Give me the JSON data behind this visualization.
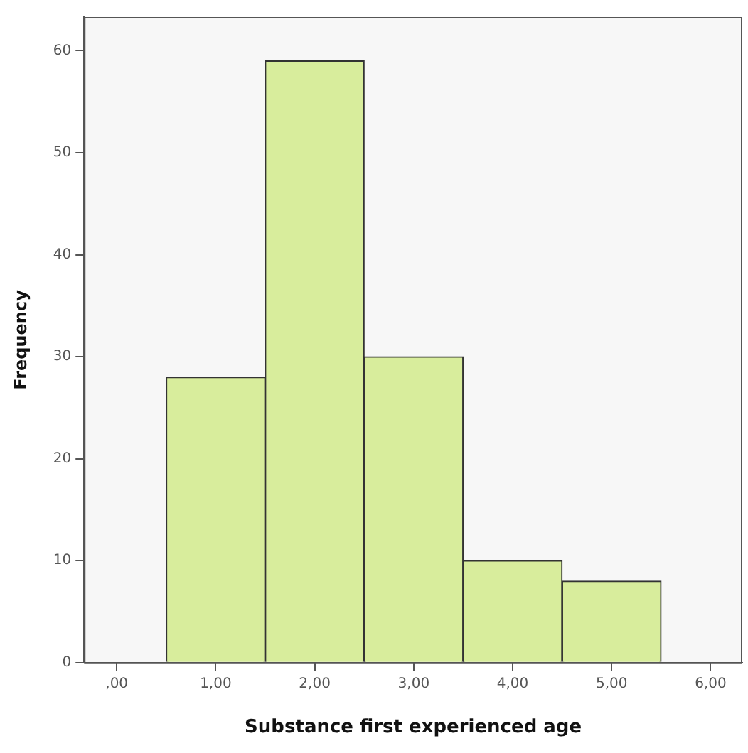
{
  "chart_data": {
    "type": "histogram",
    "xlabel": "Substance first experienced age",
    "ylabel": "Frequency",
    "bins": [
      0.5,
      1.5,
      2.5,
      3.5,
      4.5,
      5.5
    ],
    "values": [
      28,
      59,
      30,
      10,
      8
    ],
    "color": "#d8ed9c",
    "xlim": [
      -0.33,
      6.32
    ],
    "xticks": [
      {
        "value": 0,
        "label": ",00"
      },
      {
        "value": 1,
        "label": "1,00"
      },
      {
        "value": 2,
        "label": "2,00"
      },
      {
        "value": 3,
        "label": "3,00"
      },
      {
        "value": 4,
        "label": "4,00"
      },
      {
        "value": 5,
        "label": "5,00"
      },
      {
        "value": 6,
        "label": "6,00"
      }
    ],
    "ylim": [
      0,
      63.3
    ],
    "yticks": [
      0,
      10,
      20,
      30,
      40,
      50,
      60
    ],
    "grid": false,
    "legend": false
  }
}
